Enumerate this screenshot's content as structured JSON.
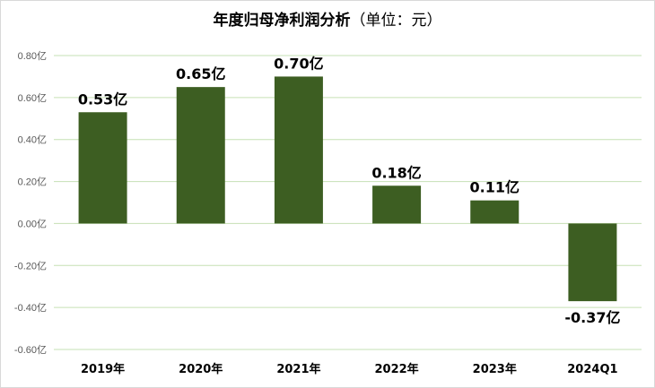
{
  "chart_data": {
    "type": "bar",
    "title": "年度归母净利润分析",
    "subtitle": "（单位：元）",
    "categories": [
      "2019年",
      "2020年",
      "2021年",
      "2022年",
      "2023年",
      "2024Q1"
    ],
    "values": [
      0.53,
      0.65,
      0.7,
      0.18,
      0.11,
      -0.37
    ],
    "data_labels": [
      "0.53亿",
      "0.65亿",
      "0.70亿",
      "0.18亿",
      "0.11亿",
      "-0.37亿"
    ],
    "y_ticks": [
      0.8,
      0.6,
      0.4,
      0.2,
      0.0,
      -0.2,
      -0.4,
      -0.6
    ],
    "y_tick_labels": [
      "0.80亿",
      "0.60亿",
      "0.40亿",
      "0.20亿",
      "0.00亿",
      "-0.20亿",
      "-0.40亿",
      "-0.60亿"
    ],
    "ylim": [
      -0.6,
      0.8
    ],
    "xlabel": "",
    "ylabel": "",
    "grid": true,
    "legend": "none",
    "bar_color": "#3d5e22",
    "grid_color": "#c6e0b4"
  }
}
